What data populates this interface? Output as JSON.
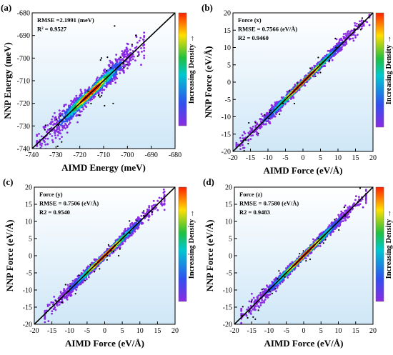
{
  "chart_data": [
    {
      "type": "scatter",
      "panel_label": "(a)",
      "xlabel": "AIMD Energy (meV)",
      "ylabel": "NNP  Energy (meV)",
      "xlim": [
        -740,
        -680
      ],
      "ylim": [
        -740,
        -680
      ],
      "xticks": [
        -740,
        -730,
        -720,
        -710,
        -700,
        -690,
        -680
      ],
      "yticks": [
        -740,
        -730,
        -720,
        -710,
        -700,
        -690,
        -680
      ],
      "annotations": [
        "RMSE =2.1991 (meV)",
        "R² = 0.9527"
      ],
      "colorbar_label": "Increasing Density →",
      "reference_line": {
        "x": [
          -740,
          -680
        ],
        "y": [
          -740,
          -680
        ]
      },
      "density_summary": {
        "x_range": [
          -738,
          -693
        ],
        "noise": 2.2
      }
    },
    {
      "type": "scatter",
      "panel_label": "(b)",
      "xlabel": "AIMD Force (eV/Å)",
      "ylabel": "NNP Force (eV/Å)",
      "xlim": [
        -20,
        20
      ],
      "ylim": [
        -20,
        20
      ],
      "xticks": [
        -20,
        -15,
        -10,
        -5,
        0,
        5,
        10,
        15,
        20
      ],
      "yticks": [
        -20,
        -15,
        -10,
        -5,
        0,
        5,
        10,
        15,
        20
      ],
      "annotations": [
        "Force (x)",
        "RMSE = 0.7566 (eV/Å)",
        "R2 = 0.9460"
      ],
      "colorbar_label": "Increasing Density →",
      "reference_line": {
        "x": [
          -20,
          20
        ],
        "y": [
          -20,
          20
        ]
      },
      "density_summary": {
        "x_range": [
          -19,
          19
        ],
        "noise": 0.76
      }
    },
    {
      "type": "scatter",
      "panel_label": "(c)",
      "xlabel": "AIMD Force (eV/Å)",
      "ylabel": "NNP Force (eV/Å)",
      "xlim": [
        -20,
        20
      ],
      "ylim": [
        -20,
        20
      ],
      "xticks": [
        -20,
        -15,
        -10,
        -5,
        0,
        5,
        10,
        15,
        20
      ],
      "yticks": [
        -20,
        -15,
        -10,
        -5,
        0,
        5,
        10,
        15,
        20
      ],
      "annotations": [
        "Force (y)",
        "RMSE = 0.7506 (eV/Å)",
        "R2 = 0.9540"
      ],
      "colorbar_label": "Increasing Density →",
      "reference_line": {
        "x": [
          -20,
          20
        ],
        "y": [
          -20,
          20
        ]
      },
      "density_summary": {
        "x_range": [
          -17,
          17
        ],
        "noise": 0.75
      }
    },
    {
      "type": "scatter",
      "panel_label": "(d)",
      "xlabel": "AIMD Force (eV/Å)",
      "ylabel": "NNP Force (eV/Å)",
      "xlim": [
        -20,
        20
      ],
      "ylim": [
        -20,
        20
      ],
      "xticks": [
        -20,
        -15,
        -10,
        -5,
        0,
        5,
        10,
        15,
        20
      ],
      "yticks": [
        -20,
        -15,
        -10,
        -5,
        0,
        5,
        10,
        15,
        20
      ],
      "annotations": [
        "Force (z)",
        "RMSE = 0.7580 (eV/Å)",
        "R2 = 0.9483"
      ],
      "colorbar_label": "Increasing Density →",
      "reference_line": {
        "x": [
          -20,
          20
        ],
        "y": [
          -20,
          20
        ]
      },
      "density_summary": {
        "x_range": [
          -18,
          18
        ],
        "noise": 0.76
      }
    }
  ],
  "colors": {
    "density_low": "#8a2be2",
    "density_mid_low": "#3050f0",
    "density_mid": "#00c8d0",
    "density_mid_high": "#20c040",
    "density_high": "#ffe000",
    "density_max": "#ff2000",
    "reference_line": "#000000",
    "plot_background_top": "#ffffff",
    "plot_background_bottom": "#cfe7f7"
  }
}
